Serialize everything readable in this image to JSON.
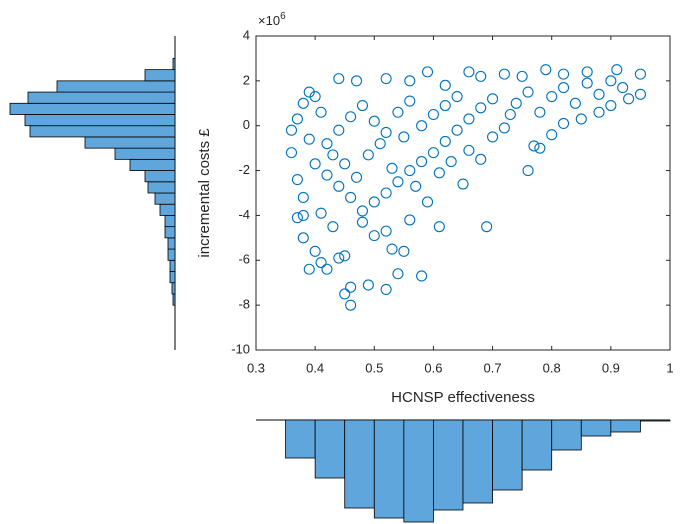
{
  "chart_data": [
    {
      "type": "scatter",
      "xlabel": "HCNSP effectiveness",
      "ylabel": "incremental costs £",
      "y_multiplier": {
        "base": "×10",
        "exponent": "6"
      },
      "color": "#0072bd",
      "xlim": [
        0.3,
        1
      ],
      "xticks": [
        0.3,
        0.4,
        0.5,
        0.6,
        0.7,
        0.8,
        0.9,
        1
      ],
      "ylim": [
        -10,
        4
      ],
      "yticks": [
        -10,
        -8,
        -6,
        -4,
        -2,
        0,
        2,
        4
      ],
      "x": [
        0.37,
        0.38,
        0.39,
        0.38,
        0.4,
        0.41,
        0.42,
        0.44,
        0.45,
        0.46,
        0.46,
        0.45,
        0.49,
        0.52,
        0.54,
        0.58,
        0.53,
        0.55,
        0.61,
        0.69,
        0.48,
        0.5,
        0.52,
        0.56,
        0.43,
        0.36,
        0.37,
        0.36,
        0.37,
        0.38,
        0.39,
        0.4,
        0.44,
        0.47,
        0.52,
        0.56,
        0.59,
        0.62,
        0.66,
        0.68,
        0.72,
        0.75,
        0.79,
        0.82,
        0.86,
        0.91,
        0.95,
        0.95,
        0.93,
        0.9,
        0.88,
        0.85,
        0.82,
        0.8,
        0.77,
        0.76,
        0.78,
        0.73,
        0.7,
        0.68,
        0.66,
        0.64,
        0.62,
        0.6,
        0.58,
        0.56,
        0.54,
        0.52,
        0.5,
        0.48,
        0.46,
        0.44,
        0.42,
        0.4,
        0.42,
        0.44,
        0.46,
        0.48,
        0.5,
        0.52,
        0.54,
        0.56,
        0.58,
        0.6,
        0.62,
        0.64,
        0.66,
        0.68,
        0.7,
        0.72,
        0.74,
        0.76,
        0.78,
        0.8,
        0.82,
        0.84,
        0.86,
        0.88,
        0.9,
        0.92,
        0.47,
        0.49,
        0.51,
        0.53,
        0.55,
        0.57,
        0.59,
        0.61,
        0.63,
        0.65,
        0.38,
        0.41,
        0.43,
        0.45,
        0.39,
        0.41
      ],
      "y": [
        -4.1,
        -4.0,
        -6.4,
        -5.0,
        -5.6,
        -6.1,
        -6.4,
        -5.9,
        -7.5,
        -8.0,
        -7.2,
        -5.8,
        -7.1,
        -7.3,
        -6.6,
        -6.7,
        -5.5,
        -5.6,
        -4.5,
        -4.5,
        -4.3,
        -4.9,
        -4.7,
        -4.2,
        -4.5,
        -1.2,
        -2.4,
        -0.2,
        0.3,
        1.0,
        1.5,
        1.3,
        2.1,
        2.0,
        2.1,
        2.0,
        2.4,
        1.8,
        2.4,
        2.2,
        2.3,
        2.2,
        2.5,
        2.3,
        2.4,
        2.5,
        2.3,
        1.4,
        1.2,
        0.9,
        0.6,
        0.3,
        0.1,
        -0.4,
        -0.9,
        -2.0,
        -1.0,
        0.5,
        1.2,
        0.8,
        0.3,
        -0.2,
        -0.7,
        -1.2,
        -1.6,
        -2.0,
        -2.5,
        -3.0,
        -3.4,
        -3.8,
        -3.2,
        -2.7,
        -2.2,
        -1.7,
        -0.8,
        -0.2,
        0.4,
        0.9,
        0.2,
        -0.3,
        0.6,
        1.1,
        0.0,
        0.5,
        0.9,
        1.3,
        -1.1,
        -1.5,
        -0.5,
        -0.1,
        1.0,
        1.5,
        0.6,
        1.3,
        1.7,
        1.0,
        1.9,
        1.4,
        2.0,
        1.7,
        -2.3,
        -1.3,
        -0.8,
        -1.9,
        -0.5,
        -2.7,
        -3.4,
        -2.1,
        -1.6,
        -2.6,
        -3.2,
        -3.9,
        -1.3,
        -1.7,
        -0.6,
        0.6
      ]
    },
    {
      "type": "histogram",
      "orientation": "horizontal",
      "color": "#5fa6dc",
      "bins": [
        -8,
        -7.5,
        -7,
        -6.5,
        -6,
        -5.5,
        -5,
        -4.5,
        -4,
        -3.5,
        -3,
        -2.5,
        -2,
        -1.5,
        -1,
        -0.5,
        0,
        0.5,
        1,
        1.5,
        2,
        2.5,
        3
      ],
      "counts": [
        2,
        3,
        5,
        5,
        7,
        7,
        10,
        10,
        15,
        20,
        27,
        30,
        45,
        60,
        90,
        145,
        150,
        165,
        147,
        118,
        30,
        2
      ]
    },
    {
      "type": "histogram",
      "orientation": "vertical",
      "color": "#5fa6dc",
      "bins": [
        0.35,
        0.4,
        0.45,
        0.5,
        0.55,
        0.6,
        0.65,
        0.7,
        0.75,
        0.8,
        0.85,
        0.9,
        0.95,
        1.0
      ],
      "counts": [
        38,
        58,
        88,
        98,
        102,
        90,
        83,
        70,
        50,
        30,
        16,
        12,
        1
      ]
    }
  ]
}
